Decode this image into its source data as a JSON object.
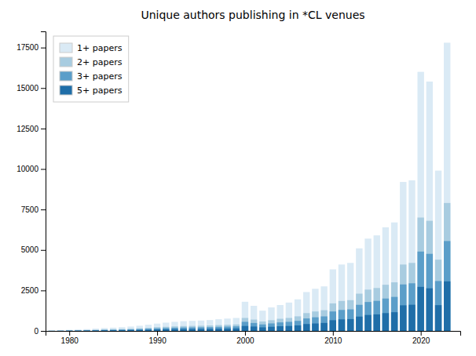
{
  "chart_data": {
    "type": "bar",
    "title": "Unique authors publishing in *CL venues",
    "x": [
      1978,
      1979,
      1980,
      1981,
      1982,
      1983,
      1984,
      1985,
      1986,
      1987,
      1988,
      1989,
      1990,
      1991,
      1992,
      1993,
      1994,
      1995,
      1996,
      1997,
      1998,
      1999,
      2000,
      2001,
      2002,
      2003,
      2004,
      2005,
      2006,
      2007,
      2008,
      2009,
      2010,
      2011,
      2012,
      2013,
      2014,
      2015,
      2016,
      2017,
      2018,
      2019,
      2020,
      2021,
      2022,
      2023
    ],
    "series": [
      {
        "name": "1+ papers",
        "color": "#daeaf5",
        "values": [
          25,
          40,
          70,
          90,
          110,
          140,
          175,
          200,
          230,
          270,
          320,
          380,
          450,
          510,
          560,
          600,
          620,
          640,
          670,
          720,
          760,
          800,
          1800,
          1550,
          1250,
          1450,
          1600,
          1750,
          1950,
          2400,
          2600,
          2750,
          3800,
          4100,
          4200,
          5100,
          5700,
          5900,
          6400,
          6700,
          9200,
          9300,
          16000,
          15400,
          9900,
          17800
        ]
      },
      {
        "name": "2+ papers",
        "color": "#a8cce0",
        "values": [
          12,
          20,
          35,
          45,
          58,
          70,
          88,
          100,
          115,
          135,
          160,
          190,
          230,
          255,
          280,
          300,
          310,
          320,
          335,
          360,
          380,
          400,
          800,
          700,
          580,
          660,
          750,
          800,
          900,
          1100,
          1200,
          1280,
          1700,
          1850,
          1900,
          2300,
          2550,
          2650,
          2850,
          3000,
          4100,
          4200,
          7000,
          6800,
          4400,
          7900
        ]
      },
      {
        "name": "3+ papers",
        "color": "#5b9ec9",
        "values": [
          8,
          13,
          24,
          30,
          40,
          48,
          62,
          70,
          80,
          95,
          112,
          133,
          160,
          178,
          196,
          210,
          217,
          224,
          234,
          252,
          267,
          280,
          560,
          490,
          400,
          462,
          525,
          560,
          620,
          770,
          840,
          896,
          1200,
          1295,
          1330,
          1610,
          1785,
          1855,
          2000,
          2100,
          2870,
          2940,
          4900,
          4760,
          3080,
          5550
        ]
      },
      {
        "name": "5+ papers",
        "color": "#1f6ea8",
        "values": [
          4,
          7,
          13,
          16,
          21,
          26,
          34,
          39,
          44,
          52,
          62,
          73,
          88,
          98,
          107,
          115,
          119,
          122,
          127,
          138,
          147,
          153,
          305,
          270,
          220,
          254,
          288,
          305,
          340,
          425,
          458,
          492,
          660,
          712,
          730,
          884,
          984,
          1020,
          1100,
          1155,
          1580,
          1615,
          2720,
          2630,
          1590,
          3060
        ]
      }
    ],
    "stacked": false,
    "xlim": [
      1977.3,
      2024.5
    ],
    "xticks": [
      1980,
      1990,
      2000,
      2010,
      2020
    ],
    "ylim": [
      0,
      18500
    ],
    "yticks": [
      0,
      2500,
      5000,
      7500,
      10000,
      12500,
      15000,
      17500
    ],
    "grid": false,
    "legend": "upper left"
  }
}
